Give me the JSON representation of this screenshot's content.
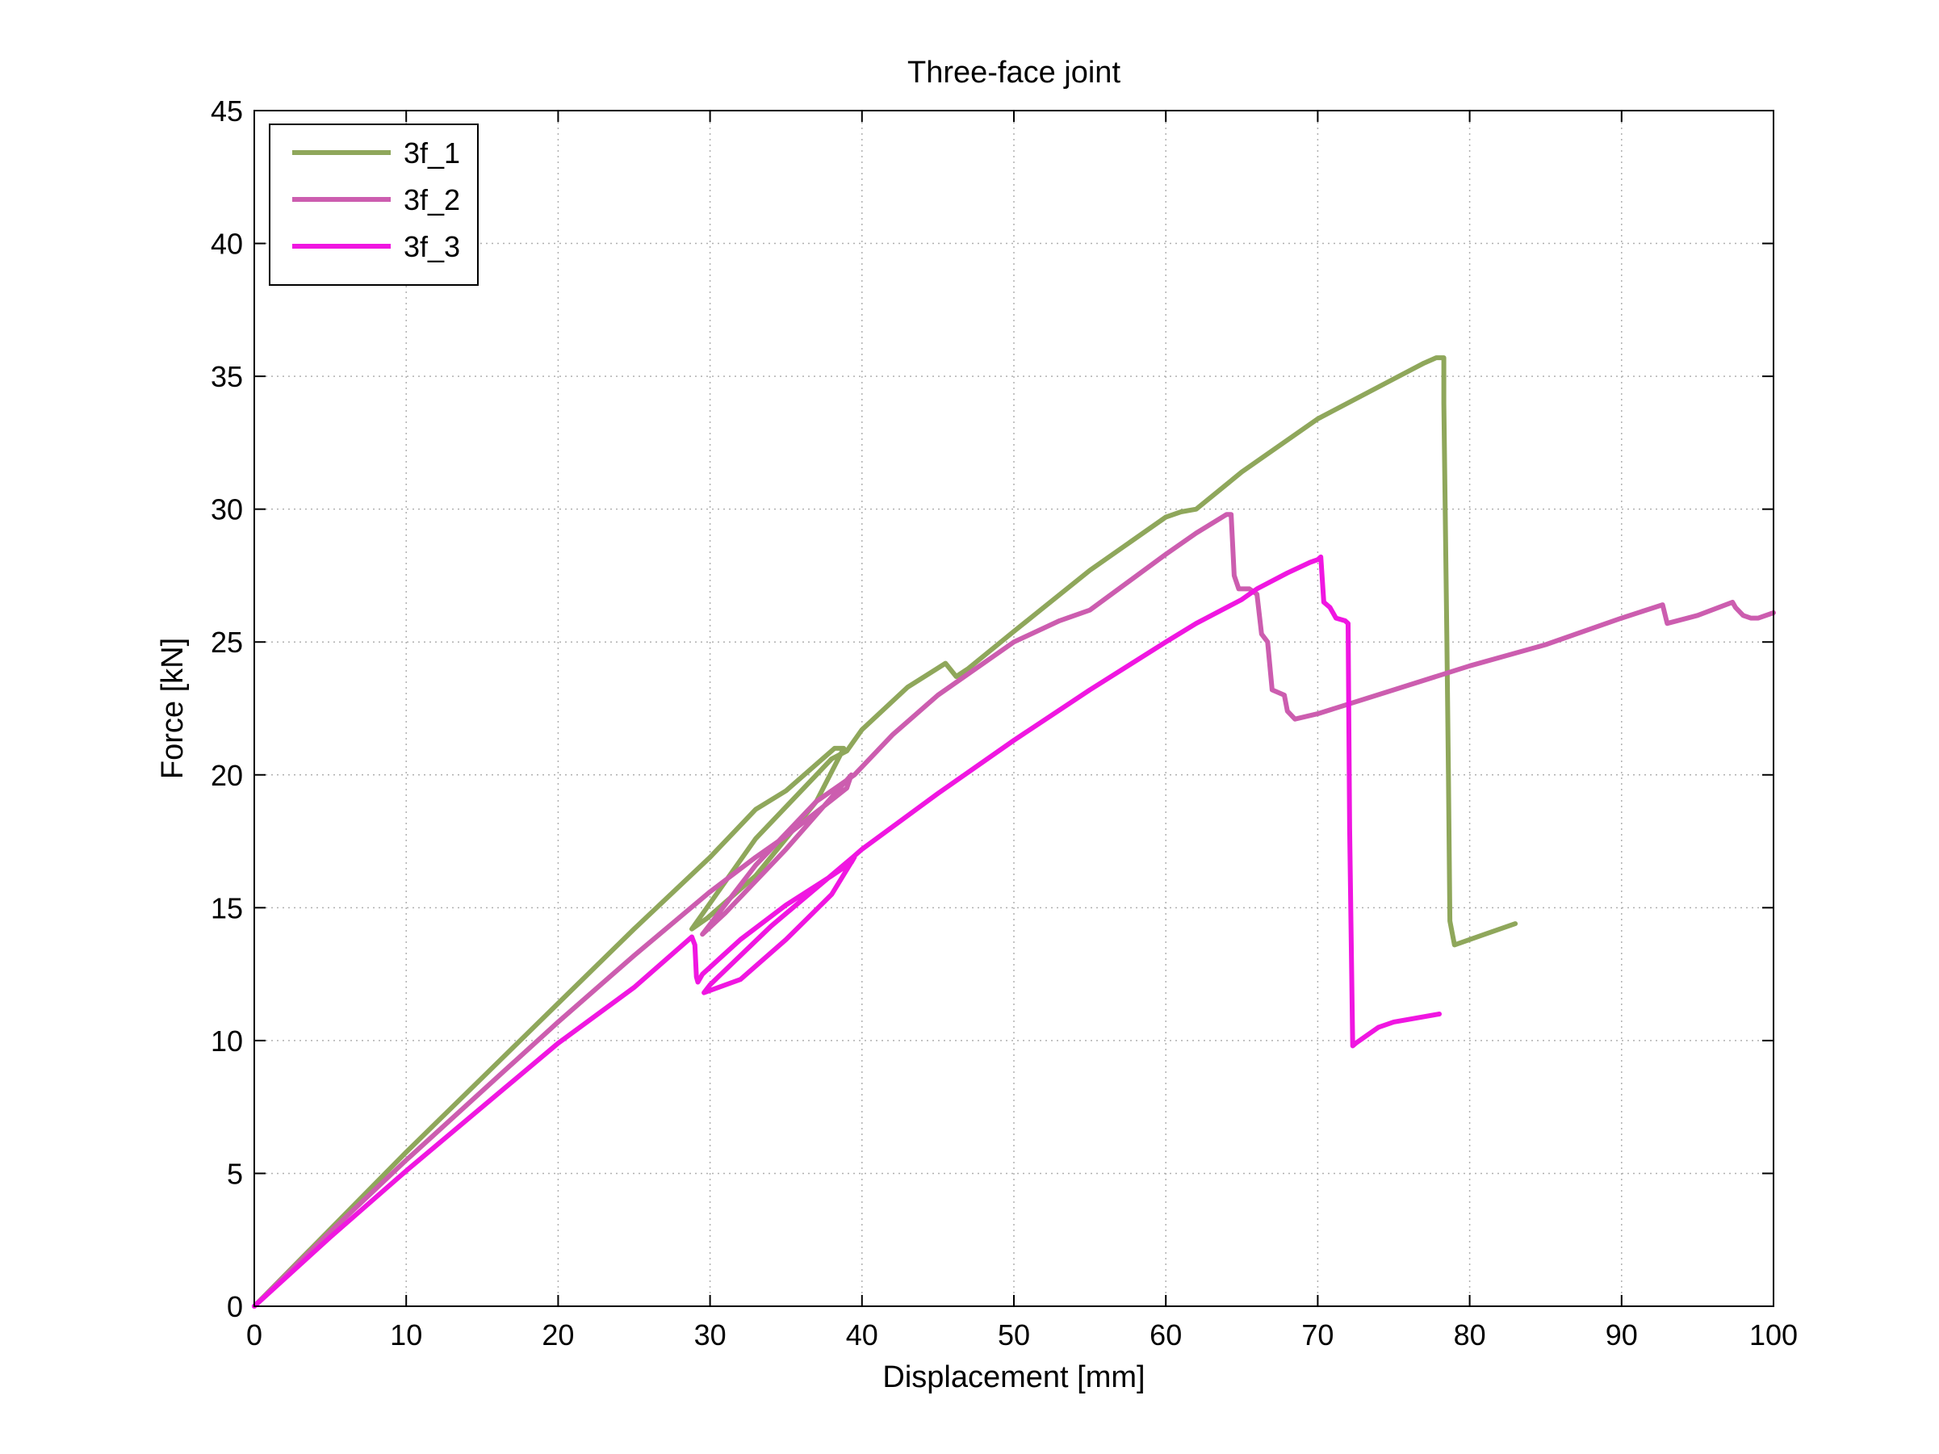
{
  "chart_data": {
    "type": "line",
    "title": "Three-face joint",
    "xlabel": "Displacement [mm]",
    "ylabel": "Force [kN]",
    "xlim": [
      0,
      100
    ],
    "ylim": [
      0,
      45
    ],
    "xticks": [
      0,
      10,
      20,
      30,
      40,
      50,
      60,
      70,
      80,
      90,
      100
    ],
    "yticks": [
      0,
      5,
      10,
      15,
      20,
      25,
      30,
      35,
      40,
      45
    ],
    "grid": true,
    "legend_position": "top-left",
    "series": [
      {
        "name": "3f_1",
        "color": "#8FA75B",
        "x": [
          0,
          5,
          10,
          15,
          20,
          25,
          30,
          33,
          35,
          37,
          38.2,
          38.8,
          37,
          33,
          29.8,
          28.8,
          33,
          38,
          39,
          40,
          43,
          45.5,
          46.2,
          47,
          50,
          55,
          60,
          61,
          62,
          65,
          70,
          73,
          75,
          77,
          77.8,
          78.3,
          78.3,
          78.5,
          78.6,
          78.7,
          79,
          80,
          81,
          83
        ],
        "y": [
          0,
          2.9,
          5.8,
          8.6,
          11.4,
          14.2,
          16.9,
          18.7,
          19.4,
          20.4,
          21.0,
          21.0,
          19.0,
          16.2,
          14.6,
          14.2,
          17.6,
          20.6,
          20.9,
          21.7,
          23.3,
          24.2,
          23.7,
          24.0,
          25.4,
          27.7,
          29.7,
          29.9,
          30.0,
          31.4,
          33.4,
          34.3,
          34.9,
          35.5,
          35.7,
          35.7,
          34.0,
          25.0,
          20.0,
          14.5,
          13.6,
          13.8,
          14.0,
          14.4
        ]
      },
      {
        "name": "3f_2",
        "color": "#CC5DAF",
        "x": [
          0,
          5,
          10,
          15,
          20,
          25,
          30,
          33,
          35,
          37,
          39,
          39.3,
          35,
          31,
          29.5,
          33,
          37,
          39.5,
          42,
          45,
          50,
          53,
          55,
          60,
          62,
          64,
          64.3,
          64.5,
          64.8,
          65.5,
          66,
          66.3,
          66.7,
          67,
          67.8,
          68,
          68.5,
          70,
          75,
          80,
          85,
          90,
          92.7,
          93,
          95,
          97.3,
          97.5,
          98,
          98.5,
          99,
          100
        ],
        "y": [
          0,
          2.8,
          5.5,
          8.1,
          10.7,
          13.2,
          15.6,
          16.9,
          17.7,
          18.6,
          19.5,
          20.0,
          17.2,
          14.8,
          14.0,
          16.6,
          19.0,
          20.0,
          21.5,
          23.0,
          25.0,
          25.8,
          26.2,
          28.3,
          29.1,
          29.8,
          29.8,
          27.5,
          27.0,
          27.0,
          26.8,
          25.3,
          25.0,
          23.2,
          23.0,
          22.4,
          22.1,
          22.3,
          23.2,
          24.1,
          24.9,
          25.9,
          26.4,
          25.7,
          26.0,
          26.5,
          26.3,
          26.0,
          25.9,
          25.9,
          26.1
        ]
      },
      {
        "name": "3f_3",
        "color": "#F016E1",
        "x": [
          0,
          5,
          10,
          15,
          20,
          25,
          28.8,
          29,
          29.1,
          29.2,
          29.5,
          32,
          35,
          38,
          39.3,
          39.5,
          38,
          35,
          32,
          29.6,
          30,
          34,
          39.4,
          40,
          45,
          50,
          55,
          60,
          62,
          65,
          66,
          68,
          69.5,
          70,
          70.2,
          70.4,
          70.8,
          71.2,
          71.8,
          72,
          72.1,
          72.3,
          72.5,
          73,
          74,
          75,
          78
        ],
        "y": [
          0,
          2.6,
          5.1,
          7.5,
          9.9,
          12.0,
          13.9,
          13.6,
          12.4,
          12.2,
          12.5,
          13.8,
          15.1,
          16.2,
          16.7,
          16.9,
          15.5,
          13.8,
          12.3,
          11.8,
          12.1,
          14.3,
          16.9,
          17.2,
          19.3,
          21.3,
          23.2,
          25.0,
          25.7,
          26.6,
          27.0,
          27.6,
          28.0,
          28.1,
          28.2,
          26.5,
          26.3,
          25.9,
          25.8,
          25.7,
          18.0,
          9.8,
          9.9,
          10.1,
          10.5,
          10.7,
          11.0
        ]
      }
    ]
  }
}
